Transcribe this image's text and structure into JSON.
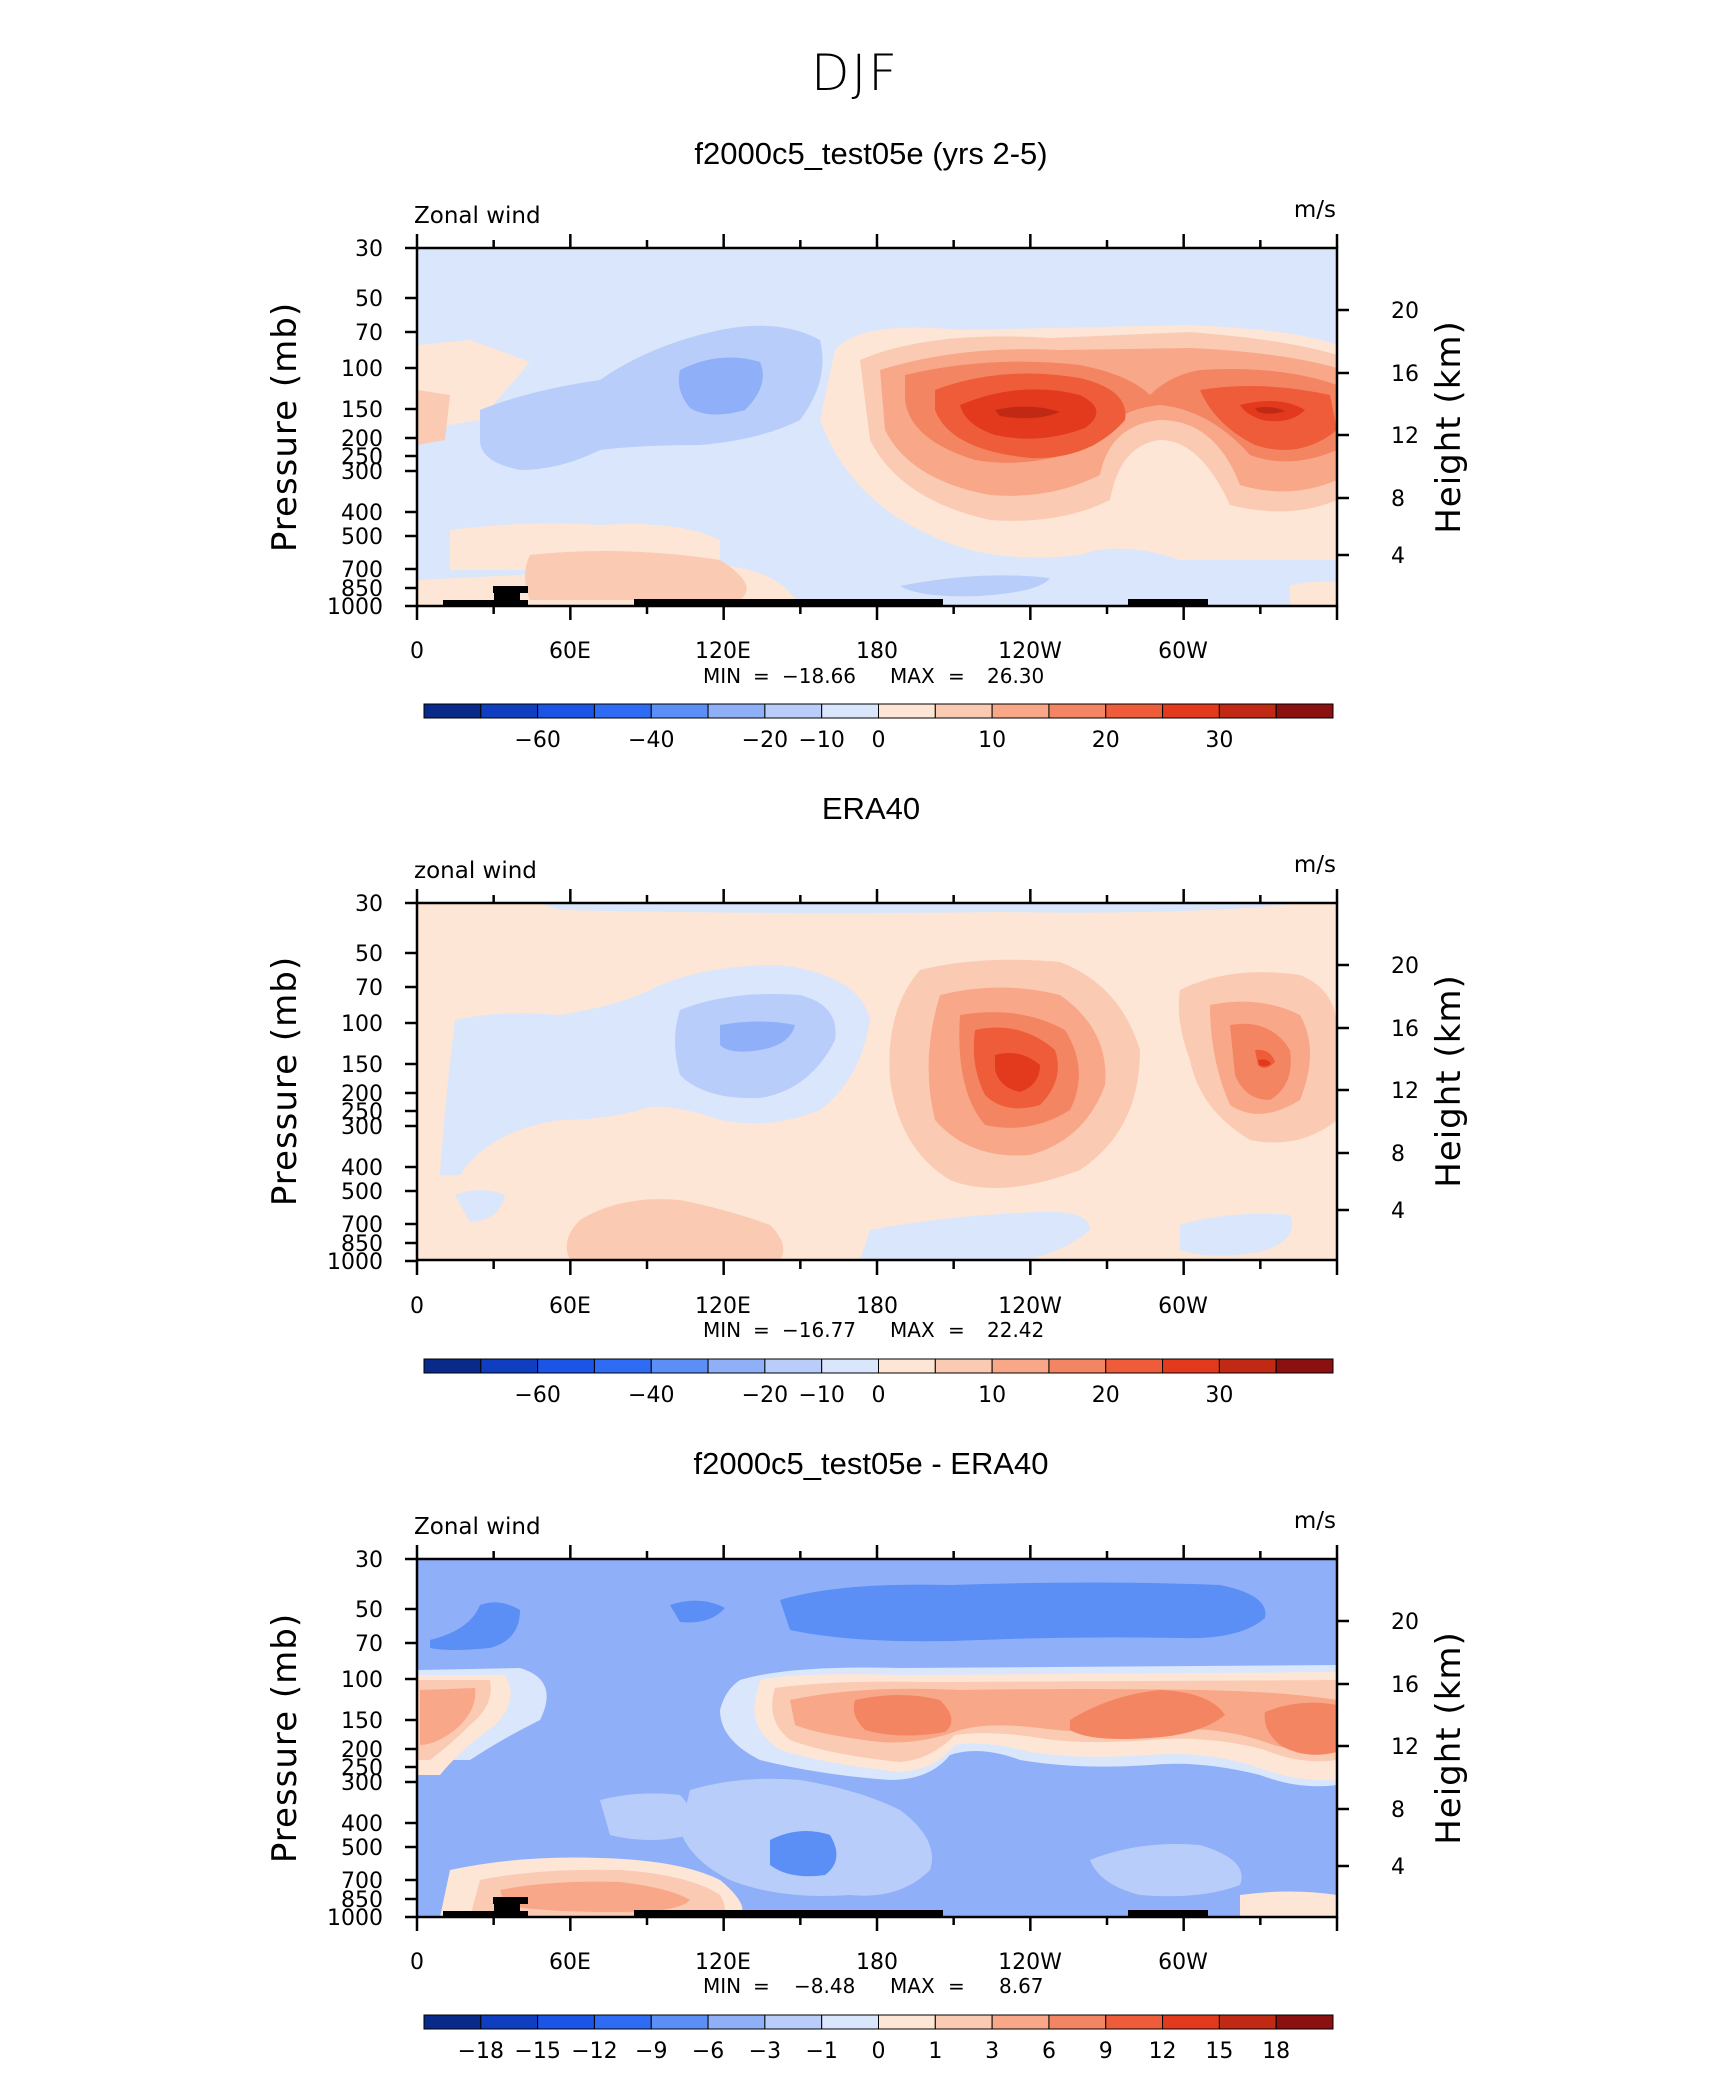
{
  "figure": {
    "title": "DJF"
  },
  "colors": {
    "model_scale": [
      "#0a2a8a",
      "#0f3fc0",
      "#1a55e6",
      "#2f6cf5",
      "#5b8ff6",
      "#8fb0f8",
      "#b8cdf9",
      "#d9e6fb",
      "#fde6d6",
      "#fbcab3",
      "#f8a888",
      "#f48562",
      "#ef5c3a",
      "#e33a1e",
      "#c02a14",
      "#8b1010"
    ],
    "diff_scale": [
      "#0a2a8a",
      "#0f3fc0",
      "#1a55e6",
      "#2f6cf5",
      "#5b8ff6",
      "#8fb0f8",
      "#b8cdf9",
      "#d9e6fb",
      "#fde6d6",
      "#fbcab3",
      "#f8a888",
      "#f48562",
      "#ef5c3a",
      "#e33a1e",
      "#c02a14",
      "#8b1010"
    ]
  },
  "chart_data": [
    {
      "type": "heatmap",
      "title": "f2000c5_test05e (yrs 2-5)",
      "left_label": "Zonal wind",
      "right_label": "m/s",
      "ylabel": "Pressure (mb)",
      "y2label": "Height (km)",
      "xticklabels": [
        "0",
        "60E",
        "120E",
        "180",
        "120W",
        "60W"
      ],
      "yticklabels": [
        "30",
        "50",
        "70",
        "100",
        "150",
        "200",
        "250",
        "300",
        "400",
        "500",
        "700",
        "850",
        "1000"
      ],
      "y2ticklabels": [
        "20",
        "16",
        "12",
        "8",
        "4"
      ],
      "stats": {
        "min_label": "MIN",
        "min_value": "−18.66",
        "max_label": "MAX",
        "max_value": "26.30"
      },
      "colorbar": {
        "labels": [
          "−60",
          "−40",
          "−20",
          "−10",
          "0",
          "10",
          "20",
          "30"
        ]
      }
    },
    {
      "type": "heatmap",
      "title": "ERA40",
      "left_label": "zonal wind",
      "right_label": "m/s",
      "ylabel": "Pressure (mb)",
      "y2label": "Height (km)",
      "xticklabels": [
        "0",
        "60E",
        "120E",
        "180",
        "120W",
        "60W"
      ],
      "yticklabels": [
        "30",
        "50",
        "70",
        "100",
        "150",
        "200",
        "250",
        "300",
        "400",
        "500",
        "700",
        "850",
        "1000"
      ],
      "y2ticklabels": [
        "20",
        "16",
        "12",
        "8",
        "4"
      ],
      "stats": {
        "min_label": "MIN",
        "min_value": "−16.77",
        "max_label": "MAX",
        "max_value": "22.42"
      },
      "colorbar": {
        "labels": [
          "−60",
          "−40",
          "−20",
          "−10",
          "0",
          "10",
          "20",
          "30"
        ]
      }
    },
    {
      "type": "heatmap",
      "title": "f2000c5_test05e - ERA40",
      "left_label": "Zonal wind",
      "right_label": "m/s",
      "ylabel": "Pressure (mb)",
      "y2label": "Height (km)",
      "xticklabels": [
        "0",
        "60E",
        "120E",
        "180",
        "120W",
        "60W"
      ],
      "yticklabels": [
        "30",
        "50",
        "70",
        "100",
        "150",
        "200",
        "250",
        "300",
        "400",
        "500",
        "700",
        "850",
        "1000"
      ],
      "y2ticklabels": [
        "20",
        "16",
        "12",
        "8",
        "4"
      ],
      "stats": {
        "min_label": "MIN",
        "min_value": "−8.48",
        "max_label": "MAX",
        "max_value": "8.67"
      },
      "colorbar": {
        "labels": [
          "−18",
          "−15",
          "−12",
          "−9",
          "−6",
          "−3",
          "−1",
          "0",
          "1",
          "3",
          "6",
          "9",
          "12",
          "15",
          "18"
        ]
      }
    }
  ]
}
